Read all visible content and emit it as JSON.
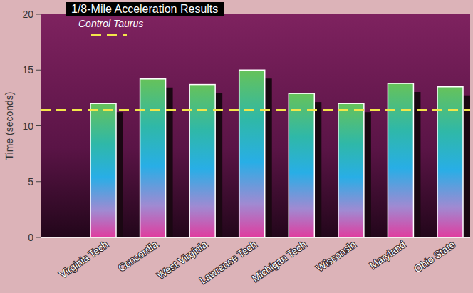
{
  "chart_data": {
    "type": "bar",
    "title": "1/8-Mile Acceleration Results",
    "y_label": "Time (seconds)",
    "categories": [
      "Virginia Tech",
      "Concordia",
      "West Virginia",
      "Lawrence Tech",
      "Michigan Tech",
      "Wisconsin",
      "Maryland",
      "Ohio State"
    ],
    "values": [
      12.0,
      14.2,
      13.7,
      15.0,
      12.9,
      12.0,
      13.8,
      13.5
    ],
    "ylim": [
      0,
      20
    ],
    "yticks": [
      0,
      5,
      10,
      15,
      20
    ],
    "grid": false,
    "legend": "upper left",
    "reference_lines": [
      {
        "label": "Control Taurus",
        "value": 11.4,
        "color": "#f2e64a",
        "line_style": "dashed"
      }
    ]
  }
}
